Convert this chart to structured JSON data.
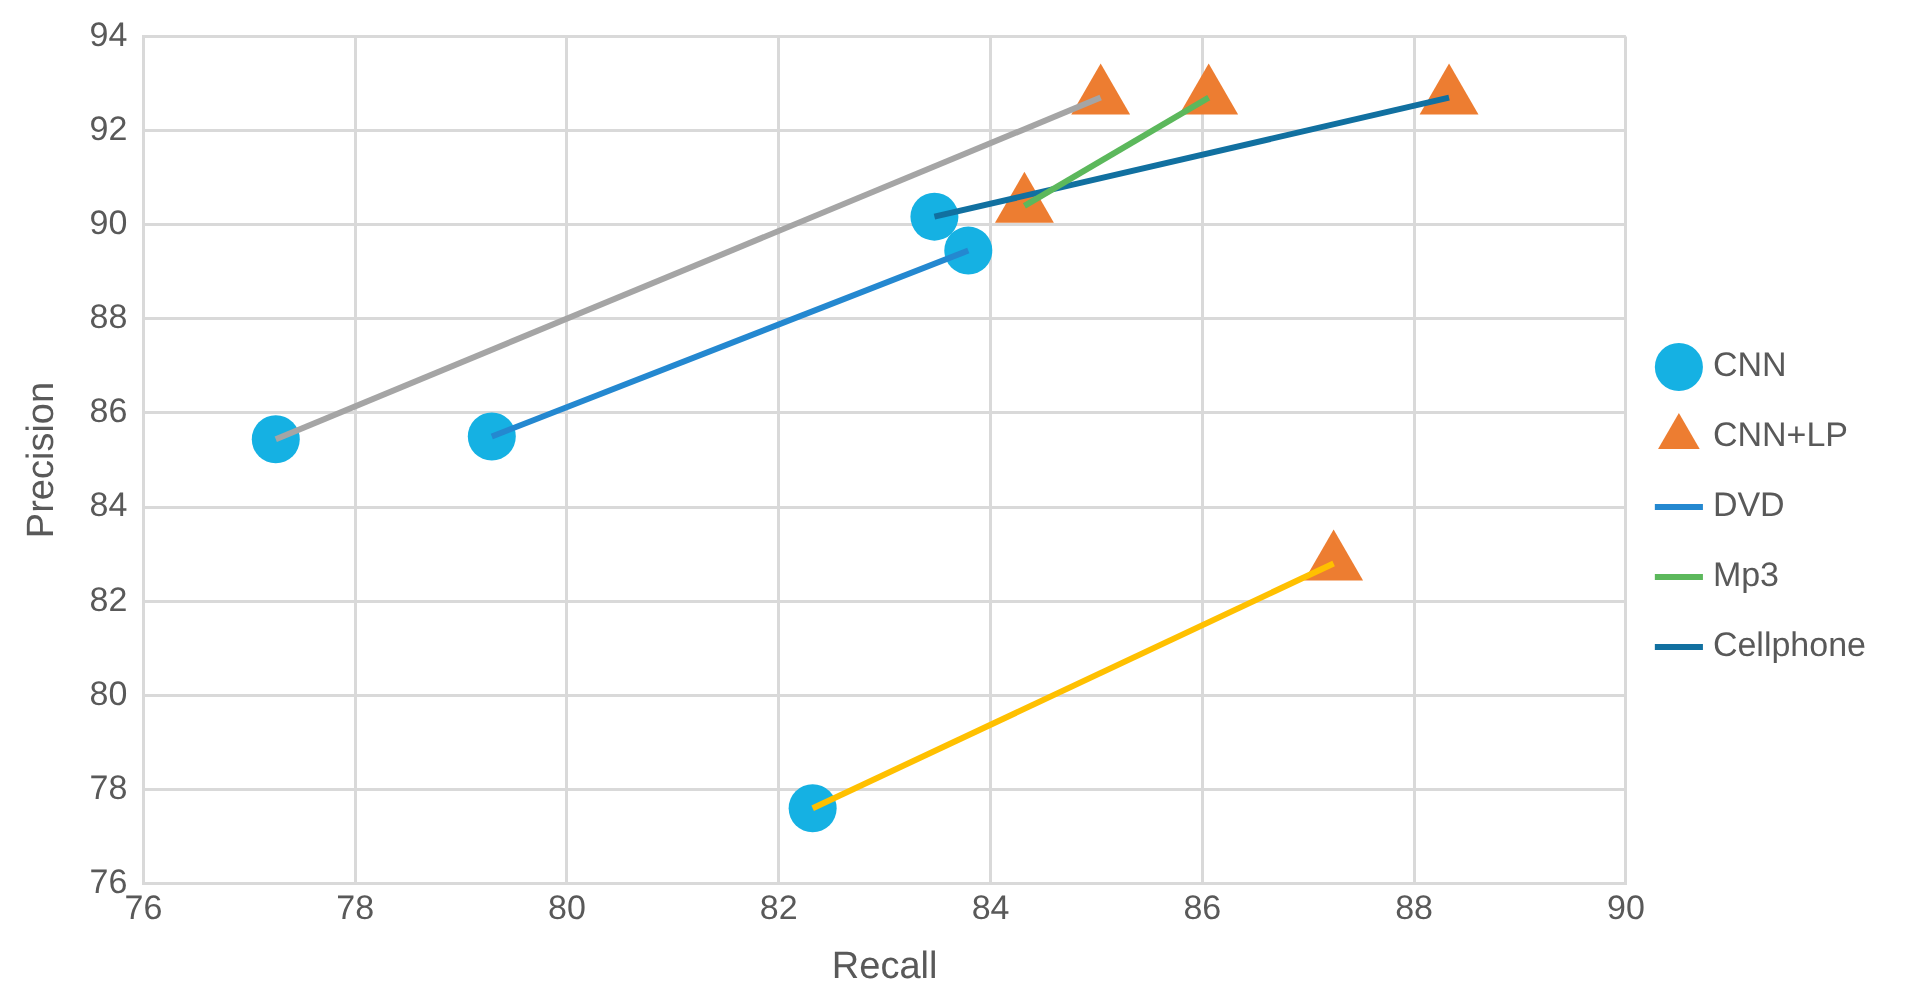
{
  "chart_data": {
    "type": "scatter",
    "xlabel": "Recall",
    "ylabel": "Precision",
    "xlim": [
      76,
      90
    ],
    "xticks": [
      76,
      78,
      80,
      82,
      84,
      86,
      88,
      90
    ],
    "ylim": [
      76,
      94
    ],
    "yticks": [
      76,
      78,
      80,
      82,
      84,
      86,
      88,
      90,
      92,
      94
    ],
    "grid": true,
    "legend": "right",
    "series": [
      {
        "name": "CNN",
        "type": "scatter",
        "marker": "circle",
        "color": "#15b1e3",
        "x": [
          77.25,
          79.29,
          83.47,
          83.79,
          82.32
        ],
        "values": [
          85.44,
          85.5,
          90.17,
          89.45,
          77.6
        ]
      },
      {
        "name": "CNN+LP",
        "type": "scatter",
        "marker": "triangle",
        "color": "#ed7d31",
        "x": [
          85.04,
          87.24,
          84.32,
          86.06,
          88.33
        ],
        "values": [
          92.7,
          82.8,
          90.4,
          92.7,
          92.7
        ]
      },
      {
        "type": "line",
        "marker": "none",
        "color": "#a5a5a5",
        "x": [
          77.25,
          85.04
        ],
        "values": [
          85.44,
          92.7
        ]
      },
      {
        "type": "line",
        "marker": "none",
        "color": "#ffc000",
        "x": [
          82.32,
          87.24
        ],
        "values": [
          77.6,
          82.8
        ]
      },
      {
        "name": "DVD",
        "type": "line",
        "marker": "none",
        "color": "#2488d0",
        "x": [
          79.29,
          83.79
        ],
        "values": [
          85.5,
          89.45
        ]
      },
      {
        "name": "Mp3",
        "type": "line",
        "marker": "none",
        "color": "#5cb85c",
        "x": [
          84.32,
          86.06
        ],
        "values": [
          90.4,
          92.7
        ]
      },
      {
        "name": "Cellphone",
        "type": "line",
        "marker": "none",
        "color": "#1170a0",
        "x": [
          83.47,
          88.33
        ],
        "values": [
          90.17,
          92.7
        ]
      }
    ]
  }
}
